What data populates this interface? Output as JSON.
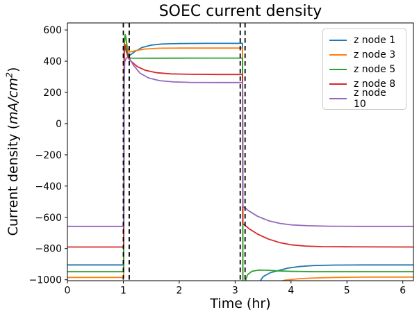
{
  "title": "SOEC current density",
  "xlabel": "Time (hr)",
  "ylabel": {
    "prefix": "Current density (",
    "math": "mA/cm",
    "sup": "2",
    "suffix": ")"
  },
  "colors": {
    "background": "#ffffff",
    "axis": "#000000",
    "legend_border": "#cccccc"
  },
  "chart_data": {
    "type": "line",
    "title": "SOEC current density",
    "xlabel": "Time (hr)",
    "ylabel": "Current density (mA/cm^2)",
    "xlim": [
      0,
      6.19
    ],
    "ylim": [
      -1006,
      645
    ],
    "xticks": [
      0,
      1,
      2,
      3,
      4,
      5,
      6
    ],
    "yticks": [
      600,
      400,
      200,
      0,
      -200,
      -400,
      -600,
      -800,
      -1000
    ],
    "grid": false,
    "legend_position": "upper right",
    "vlines": {
      "x": [
        1.0,
        1.106,
        3.091,
        3.178
      ],
      "style": "dashed",
      "color": "#000000"
    },
    "series": [
      {
        "name": "z node 1",
        "color": "#1f77b4",
        "points": [
          [
            0,
            -905
          ],
          [
            1.007,
            -905
          ],
          [
            1.018,
            485
          ],
          [
            1.03,
            498
          ],
          [
            1.05,
            462
          ],
          [
            1.08,
            442
          ],
          [
            1.11,
            436
          ],
          [
            1.2,
            460
          ],
          [
            1.33,
            487
          ],
          [
            1.5,
            503
          ],
          [
            1.7,
            510
          ],
          [
            2.0,
            513
          ],
          [
            2.5,
            514
          ],
          [
            3.09,
            514
          ],
          [
            3.132,
            514
          ],
          [
            3.138,
            -1100
          ],
          [
            3.39,
            -1040
          ],
          [
            3.5,
            -980
          ],
          [
            3.63,
            -955
          ],
          [
            3.78,
            -940
          ],
          [
            3.95,
            -925
          ],
          [
            4.15,
            -915
          ],
          [
            4.4,
            -909
          ],
          [
            4.8,
            -906
          ],
          [
            5.3,
            -905
          ],
          [
            6.19,
            -905
          ]
        ]
      },
      {
        "name": "z node 3",
        "color": "#ff7f0e",
        "points": [
          [
            0,
            -985
          ],
          [
            1.007,
            -985
          ],
          [
            1.016,
            470
          ],
          [
            1.026,
            550
          ],
          [
            1.036,
            562
          ],
          [
            1.055,
            525
          ],
          [
            1.08,
            478
          ],
          [
            1.11,
            458
          ],
          [
            1.22,
            468
          ],
          [
            1.4,
            478
          ],
          [
            1.65,
            483
          ],
          [
            2.0,
            484
          ],
          [
            3.09,
            484
          ],
          [
            3.132,
            484
          ],
          [
            3.138,
            -1100
          ],
          [
            3.5,
            -1048
          ],
          [
            3.7,
            -1018
          ],
          [
            3.9,
            -1002
          ],
          [
            4.15,
            -993
          ],
          [
            4.45,
            -988
          ],
          [
            4.8,
            -985
          ],
          [
            5.3,
            -983
          ],
          [
            6.19,
            -983
          ]
        ]
      },
      {
        "name": "z node 5",
        "color": "#2ca02c",
        "points": [
          [
            0,
            -948
          ],
          [
            1.007,
            -948
          ],
          [
            1.016,
            490
          ],
          [
            1.026,
            555
          ],
          [
            1.036,
            570
          ],
          [
            1.052,
            542
          ],
          [
            1.07,
            468
          ],
          [
            1.09,
            430
          ],
          [
            1.13,
            420
          ],
          [
            1.5,
            419
          ],
          [
            2.5,
            420
          ],
          [
            3.09,
            420
          ],
          [
            3.133,
            420
          ],
          [
            3.139,
            -1100
          ],
          [
            3.17,
            -1025
          ],
          [
            3.22,
            -968
          ],
          [
            3.3,
            -946
          ],
          [
            3.42,
            -938
          ],
          [
            3.56,
            -939
          ],
          [
            3.75,
            -943
          ],
          [
            4.0,
            -946
          ],
          [
            4.4,
            -948
          ],
          [
            6.19,
            -948
          ]
        ]
      },
      {
        "name": "z node 8",
        "color": "#d62728",
        "points": [
          [
            0,
            -790
          ],
          [
            1.007,
            -790
          ],
          [
            1.016,
            455
          ],
          [
            1.026,
            495
          ],
          [
            1.036,
            505
          ],
          [
            1.058,
            458
          ],
          [
            1.09,
            420
          ],
          [
            1.13,
            402
          ],
          [
            1.25,
            365
          ],
          [
            1.4,
            341
          ],
          [
            1.6,
            326
          ],
          [
            1.85,
            319
          ],
          [
            2.2,
            316
          ],
          [
            2.7,
            315
          ],
          [
            3.09,
            315
          ],
          [
            3.133,
            315
          ],
          [
            3.139,
            -640
          ],
          [
            3.25,
            -673
          ],
          [
            3.4,
            -707
          ],
          [
            3.6,
            -740
          ],
          [
            3.8,
            -762
          ],
          [
            4.0,
            -776
          ],
          [
            4.25,
            -784
          ],
          [
            4.55,
            -788
          ],
          [
            5.0,
            -789
          ],
          [
            6.19,
            -790
          ]
        ]
      },
      {
        "name": "z node 10",
        "color": "#9467bd",
        "points": [
          [
            0,
            -658
          ],
          [
            1.007,
            -658
          ],
          [
            1.014,
            250
          ],
          [
            1.025,
            395
          ],
          [
            1.05,
            420
          ],
          [
            1.08,
            424
          ],
          [
            1.11,
            419
          ],
          [
            1.18,
            375
          ],
          [
            1.3,
            323
          ],
          [
            1.45,
            293
          ],
          [
            1.65,
            275
          ],
          [
            1.9,
            267
          ],
          [
            2.2,
            264
          ],
          [
            2.7,
            263
          ],
          [
            3.09,
            263
          ],
          [
            3.134,
            263
          ],
          [
            3.14,
            -528
          ],
          [
            3.25,
            -560
          ],
          [
            3.4,
            -593
          ],
          [
            3.6,
            -622
          ],
          [
            3.8,
            -639
          ],
          [
            4.0,
            -648
          ],
          [
            4.3,
            -654
          ],
          [
            4.7,
            -657
          ],
          [
            5.2,
            -658
          ],
          [
            6.19,
            -658
          ]
        ]
      }
    ]
  }
}
